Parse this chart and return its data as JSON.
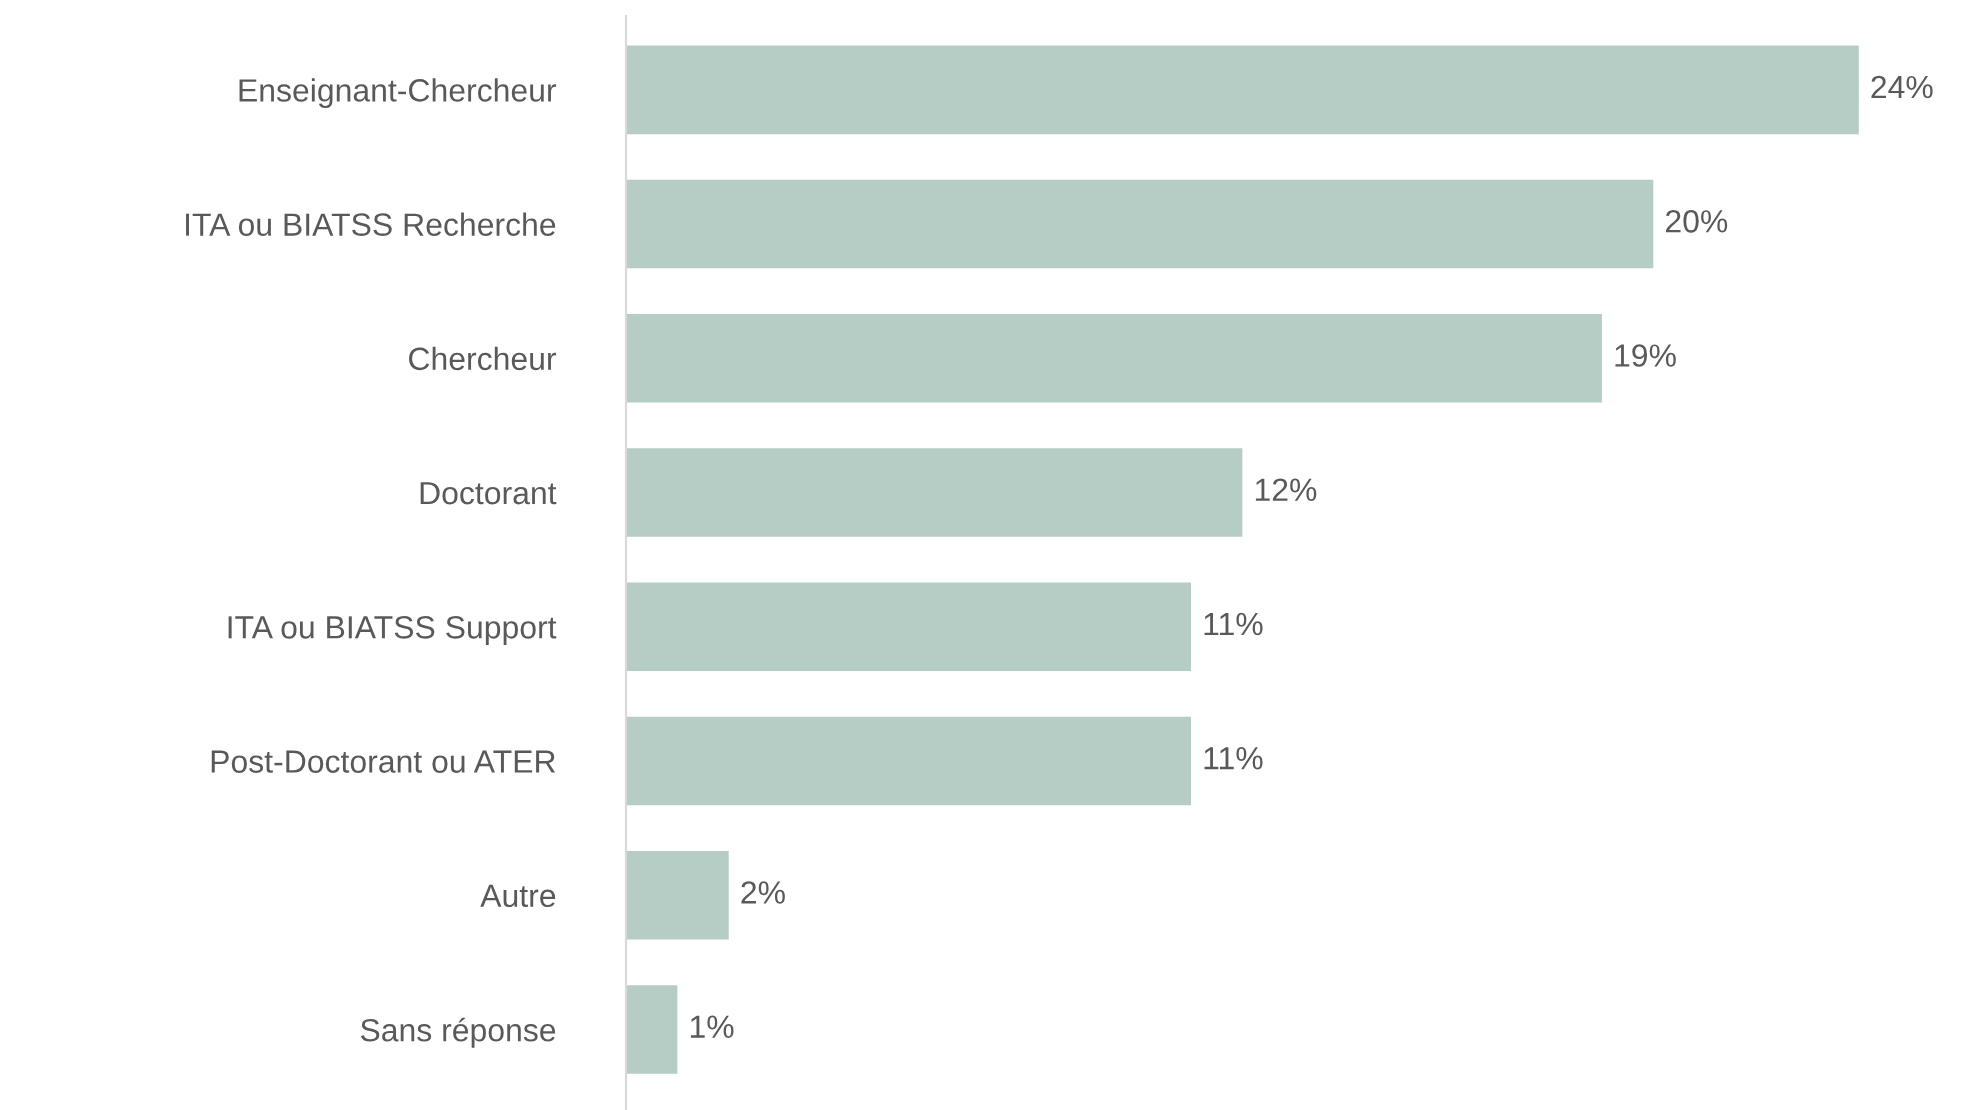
{
  "chart_data": {
    "type": "bar",
    "orientation": "horizontal",
    "categories": [
      "Enseignant-Chercheur",
      "ITA ou BIATSS Recherche",
      "Chercheur",
      "Doctorant",
      "ITA ou BIATSS Support",
      "Post-Doctorant ou ATER",
      "Autre",
      "Sans réponse"
    ],
    "values": [
      24,
      20,
      19,
      12,
      11,
      11,
      2,
      1
    ],
    "value_labels": [
      "24%",
      "20%",
      "19%",
      "12%",
      "11%",
      "11%",
      "2%",
      "1%"
    ],
    "color": "#b5cdc4",
    "tick_labels": "y",
    "grid": false
  }
}
